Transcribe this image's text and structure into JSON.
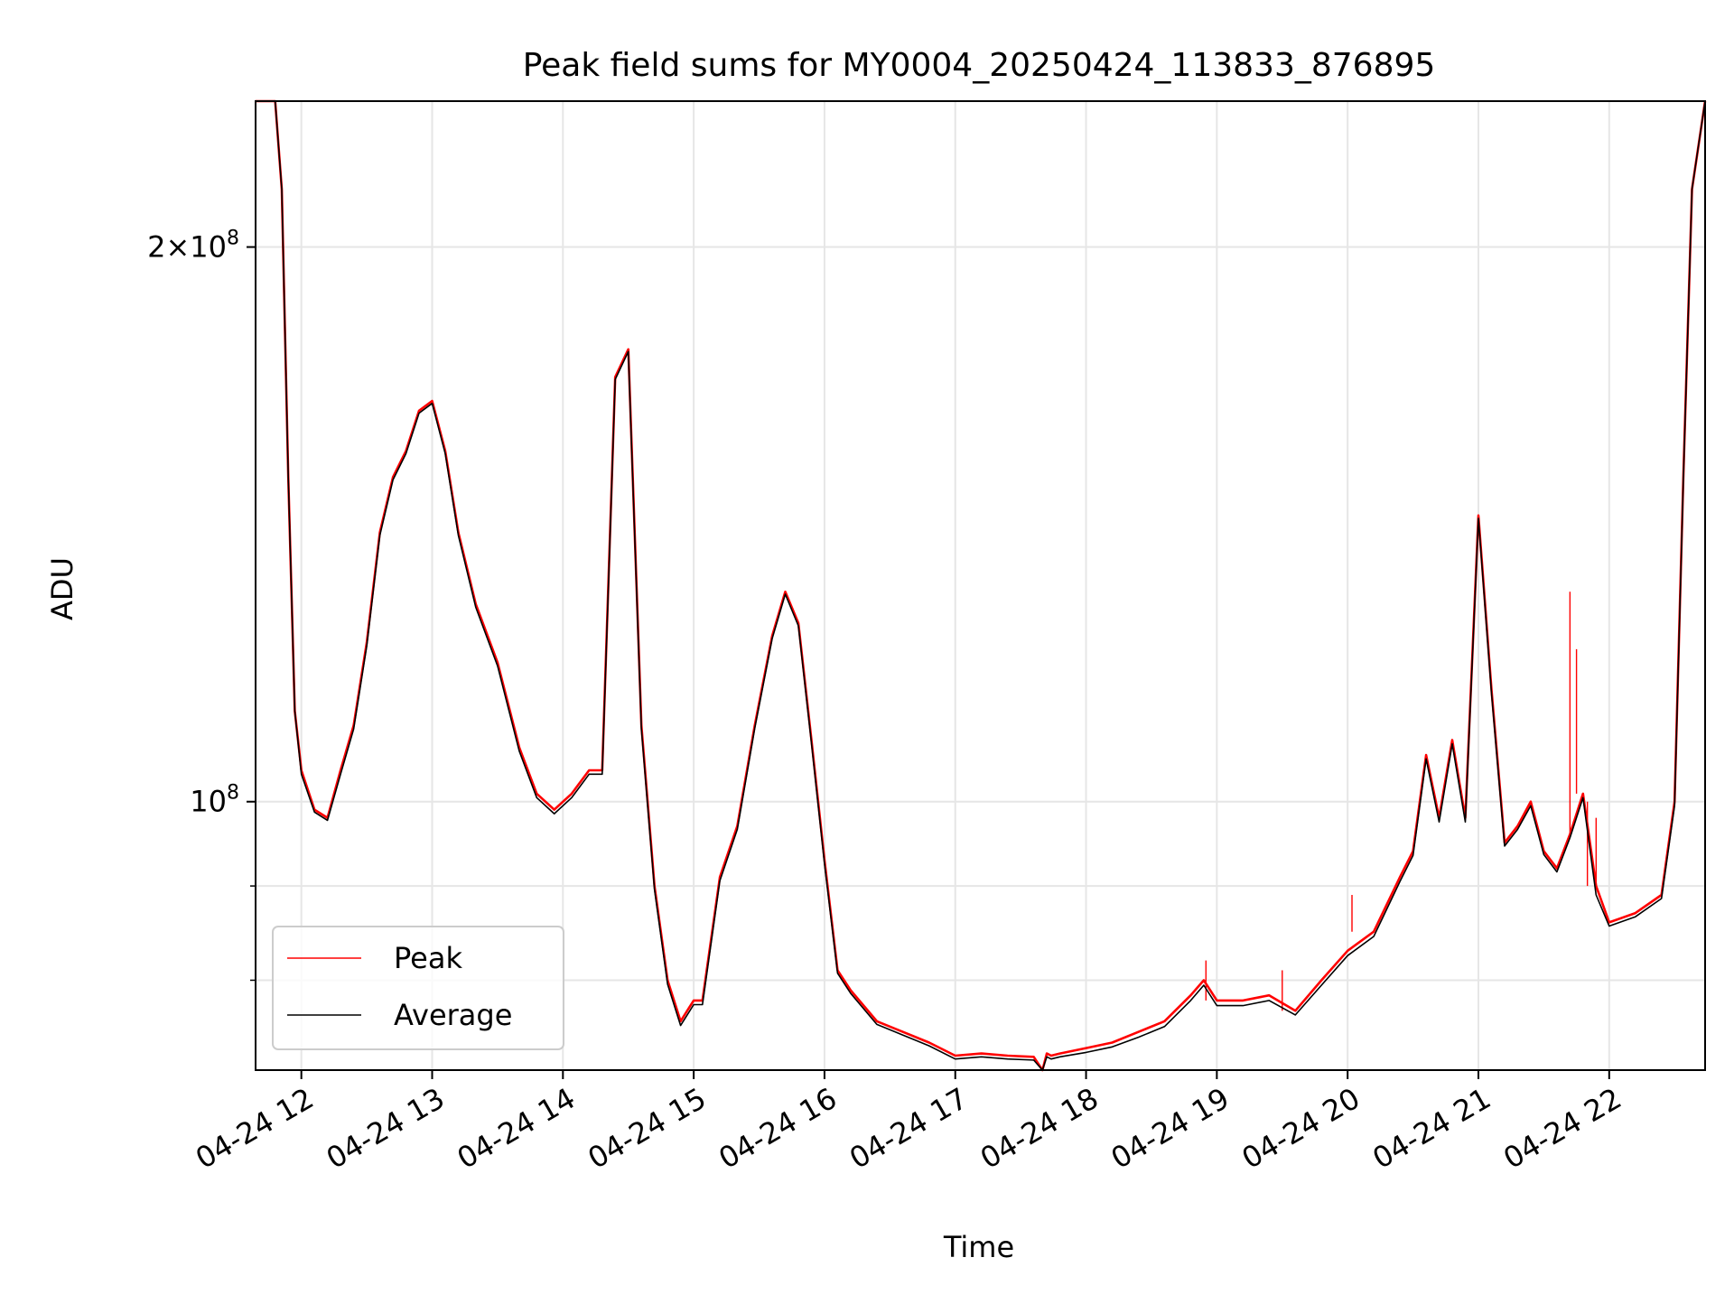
{
  "chart_data": {
    "type": "line",
    "title": "Peak field sums for MY0004_20250424_113833_876895",
    "xlabel": "Time",
    "ylabel": "ADU",
    "y_scale": "log",
    "xlim": [
      "2025-04-24 11:39",
      "2025-04-24 22:44"
    ],
    "ylim": [
      71500000,
      240000000
    ],
    "x_ticks": [
      {
        "x": "2025-04-24 12:00",
        "label": "04-24 12"
      },
      {
        "x": "2025-04-24 13:00",
        "label": "04-24 13"
      },
      {
        "x": "2025-04-24 14:00",
        "label": "04-24 14"
      },
      {
        "x": "2025-04-24 15:00",
        "label": "04-24 15"
      },
      {
        "x": "2025-04-24 16:00",
        "label": "04-24 16"
      },
      {
        "x": "2025-04-24 17:00",
        "label": "04-24 17"
      },
      {
        "x": "2025-04-24 18:00",
        "label": "04-24 18"
      },
      {
        "x": "2025-04-24 19:00",
        "label": "04-24 19"
      },
      {
        "x": "2025-04-24 20:00",
        "label": "04-24 20"
      },
      {
        "x": "2025-04-24 21:00",
        "label": "04-24 21"
      },
      {
        "x": "2025-04-24 22:00",
        "label": "04-24 22"
      }
    ],
    "y_major_ticks": [
      {
        "value": 100000000,
        "mantissa": "",
        "exponent": "8"
      },
      {
        "value": 200000000,
        "mantissa": "2",
        "exponent": "8"
      }
    ],
    "y_minor_ticks": [
      80000000,
      90000000
    ],
    "grid": true,
    "legend": {
      "position": "lower-left"
    },
    "series": [
      {
        "name": "Peak",
        "color": "#ff0000",
        "x": [
          "2025-04-24 11:39",
          "2025-04-24 11:48",
          "2025-04-24 11:51",
          "2025-04-24 11:54",
          "2025-04-24 11:57",
          "2025-04-24 12:00",
          "2025-04-24 12:06",
          "2025-04-24 12:12",
          "2025-04-24 12:18",
          "2025-04-24 12:24",
          "2025-04-24 12:30",
          "2025-04-24 12:36",
          "2025-04-24 12:42",
          "2025-04-24 12:48",
          "2025-04-24 12:54",
          "2025-04-24 13:00",
          "2025-04-24 13:06",
          "2025-04-24 13:12",
          "2025-04-24 13:20",
          "2025-04-24 13:30",
          "2025-04-24 13:40",
          "2025-04-24 13:48",
          "2025-04-24 13:56",
          "2025-04-24 14:04",
          "2025-04-24 14:12",
          "2025-04-24 14:18",
          "2025-04-24 14:24",
          "2025-04-24 14:30",
          "2025-04-24 14:36",
          "2025-04-24 14:42",
          "2025-04-24 14:48",
          "2025-04-24 14:54",
          "2025-04-24 15:00",
          "2025-04-24 15:04",
          "2025-04-24 15:12",
          "2025-04-24 15:20",
          "2025-04-24 15:28",
          "2025-04-24 15:36",
          "2025-04-24 15:42",
          "2025-04-24 15:48",
          "2025-04-24 15:54",
          "2025-04-24 16:00",
          "2025-04-24 16:06",
          "2025-04-24 16:12",
          "2025-04-24 16:24",
          "2025-04-24 16:36",
          "2025-04-24 16:48",
          "2025-04-24 17:00",
          "2025-04-24 17:12",
          "2025-04-24 17:24",
          "2025-04-24 17:36",
          "2025-04-24 17:40",
          "2025-04-24 17:42",
          "2025-04-24 17:44",
          "2025-04-24 17:48",
          "2025-04-24 18:00",
          "2025-04-24 18:12",
          "2025-04-24 18:24",
          "2025-04-24 18:36",
          "2025-04-24 18:48",
          "2025-04-24 18:54",
          "2025-04-24 19:00",
          "2025-04-24 19:12",
          "2025-04-24 19:24",
          "2025-04-24 19:36",
          "2025-04-24 19:48",
          "2025-04-24 20:00",
          "2025-04-24 20:12",
          "2025-04-24 20:24",
          "2025-04-24 20:30",
          "2025-04-24 20:36",
          "2025-04-24 20:42",
          "2025-04-24 20:48",
          "2025-04-24 20:54",
          "2025-04-24 21:00",
          "2025-04-24 21:06",
          "2025-04-24 21:12",
          "2025-04-24 21:18",
          "2025-04-24 21:24",
          "2025-04-24 21:30",
          "2025-04-24 21:36",
          "2025-04-24 21:42",
          "2025-04-24 21:48",
          "2025-04-24 21:54",
          "2025-04-24 22:00",
          "2025-04-24 22:12",
          "2025-04-24 22:24",
          "2025-04-24 22:30",
          "2025-04-24 22:34",
          "2025-04-24 22:38",
          "2025-04-24 22:44"
        ],
        "y": [
          240000000,
          240000000,
          215000000,
          150000000,
          112000000,
          104000000,
          99000000,
          98000000,
          104000000,
          110000000,
          122000000,
          140000000,
          150000000,
          155000000,
          163000000,
          165000000,
          155000000,
          140000000,
          128000000,
          119000000,
          107000000,
          101000000,
          99000000,
          101000000,
          104000000,
          104000000,
          170000000,
          176000000,
          110000000,
          90000000,
          80000000,
          76000000,
          78000000,
          78000000,
          91000000,
          97000000,
          110000000,
          123000000,
          130000000,
          125000000,
          108000000,
          93000000,
          81000000,
          79000000,
          76000000,
          75000000,
          74000000,
          72800000,
          73000000,
          72800000,
          72700000,
          71500000,
          73000000,
          72800000,
          73000000,
          73500000,
          74000000,
          75000000,
          76000000,
          78500000,
          80000000,
          78000000,
          78000000,
          78500000,
          77000000,
          80000000,
          83000000,
          85000000,
          91000000,
          94000000,
          106000000,
          98000000,
          108000000,
          98000000,
          143000000,
          115000000,
          95000000,
          97000000,
          100000000,
          94000000,
          92000000,
          96000000,
          101000000,
          90000000,
          86000000,
          87000000,
          89000000,
          100000000,
          150000000,
          215000000,
          240000000
        ],
        "spikes": [
          {
            "x": "2025-04-24 21:42",
            "y": 130000000
          },
          {
            "x": "2025-04-24 21:45",
            "y": 121000000
          },
          {
            "x": "2025-04-24 21:50",
            "y": 100000000
          },
          {
            "x": "2025-04-24 21:54",
            "y": 98000000
          },
          {
            "x": "2025-04-24 18:55",
            "y": 82000000
          },
          {
            "x": "2025-04-24 19:30",
            "y": 81000000
          },
          {
            "x": "2025-04-24 20:02",
            "y": 89000000
          }
        ]
      },
      {
        "name": "Average",
        "color": "#000000",
        "x": [
          "2025-04-24 11:39",
          "2025-04-24 11:48",
          "2025-04-24 11:51",
          "2025-04-24 11:54",
          "2025-04-24 11:57",
          "2025-04-24 12:00",
          "2025-04-24 12:06",
          "2025-04-24 12:12",
          "2025-04-24 12:18",
          "2025-04-24 12:24",
          "2025-04-24 12:30",
          "2025-04-24 12:36",
          "2025-04-24 12:42",
          "2025-04-24 12:48",
          "2025-04-24 12:54",
          "2025-04-24 13:00",
          "2025-04-24 13:06",
          "2025-04-24 13:12",
          "2025-04-24 13:20",
          "2025-04-24 13:30",
          "2025-04-24 13:40",
          "2025-04-24 13:48",
          "2025-04-24 13:56",
          "2025-04-24 14:04",
          "2025-04-24 14:12",
          "2025-04-24 14:18",
          "2025-04-24 14:24",
          "2025-04-24 14:30",
          "2025-04-24 14:36",
          "2025-04-24 14:42",
          "2025-04-24 14:48",
          "2025-04-24 14:54",
          "2025-04-24 15:00",
          "2025-04-24 15:04",
          "2025-04-24 15:12",
          "2025-04-24 15:20",
          "2025-04-24 15:28",
          "2025-04-24 15:36",
          "2025-04-24 15:42",
          "2025-04-24 15:48",
          "2025-04-24 15:54",
          "2025-04-24 16:00",
          "2025-04-24 16:06",
          "2025-04-24 16:12",
          "2025-04-24 16:24",
          "2025-04-24 16:36",
          "2025-04-24 16:48",
          "2025-04-24 17:00",
          "2025-04-24 17:12",
          "2025-04-24 17:24",
          "2025-04-24 17:36",
          "2025-04-24 17:40",
          "2025-04-24 17:42",
          "2025-04-24 17:44",
          "2025-04-24 17:48",
          "2025-04-24 18:00",
          "2025-04-24 18:12",
          "2025-04-24 18:24",
          "2025-04-24 18:36",
          "2025-04-24 18:48",
          "2025-04-24 18:54",
          "2025-04-24 19:00",
          "2025-04-24 19:12",
          "2025-04-24 19:24",
          "2025-04-24 19:36",
          "2025-04-24 19:48",
          "2025-04-24 20:00",
          "2025-04-24 20:12",
          "2025-04-24 20:24",
          "2025-04-24 20:30",
          "2025-04-24 20:36",
          "2025-04-24 20:42",
          "2025-04-24 20:48",
          "2025-04-24 20:54",
          "2025-04-24 21:00",
          "2025-04-24 21:06",
          "2025-04-24 21:12",
          "2025-04-24 21:18",
          "2025-04-24 21:24",
          "2025-04-24 21:30",
          "2025-04-24 21:36",
          "2025-04-24 21:42",
          "2025-04-24 21:48",
          "2025-04-24 21:54",
          "2025-04-24 22:00",
          "2025-04-24 22:12",
          "2025-04-24 22:24",
          "2025-04-24 22:30",
          "2025-04-24 22:34",
          "2025-04-24 22:38",
          "2025-04-24 22:44"
        ],
        "y": [
          240000000,
          240000000,
          215000000,
          150000000,
          112000000,
          103500000,
          98700000,
          97700000,
          103500000,
          109500000,
          121500000,
          139500000,
          149500000,
          154500000,
          162500000,
          164500000,
          154500000,
          139500000,
          127500000,
          118500000,
          106500000,
          100500000,
          98500000,
          100500000,
          103500000,
          103500000,
          169500000,
          175500000,
          109500000,
          89600000,
          79600000,
          75600000,
          77600000,
          77600000,
          90600000,
          96600000,
          109600000,
          122600000,
          129600000,
          124600000,
          107600000,
          92600000,
          80700000,
          78700000,
          75700000,
          74700000,
          73700000,
          72500000,
          72700000,
          72500000,
          72400000,
          70000000,
          72700000,
          72500000,
          72700000,
          73100000,
          73600000,
          74500000,
          75500000,
          78000000,
          79500000,
          77500000,
          77500000,
          78000000,
          76600000,
          79500000,
          82500000,
          84500000,
          90500000,
          93500000,
          105500000,
          97500000,
          107500000,
          97500000,
          142500000,
          114500000,
          94600000,
          96600000,
          99500000,
          93600000,
          91600000,
          95600000,
          100500000,
          89000000,
          85600000,
          86600000,
          88600000,
          99500000,
          149500000,
          215000000,
          240000000
        ]
      }
    ]
  }
}
